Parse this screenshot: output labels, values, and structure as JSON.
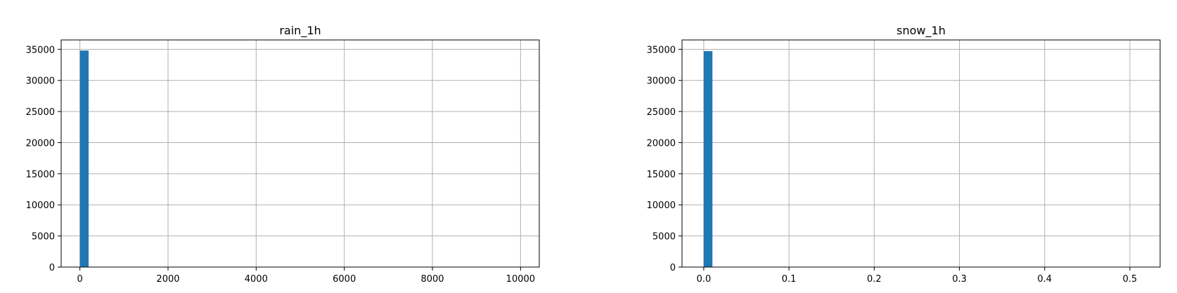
{
  "chart_data": [
    {
      "type": "bar",
      "title": "rain_1h",
      "xlabel": "",
      "ylabel": "",
      "xlim": [
        -425,
        10425
      ],
      "ylim": [
        0,
        36500
      ],
      "xticks": [
        0,
        2000,
        4000,
        6000,
        8000,
        10000
      ],
      "xtick_labels": [
        "0",
        "2000",
        "4000",
        "6000",
        "8000",
        "10000"
      ],
      "yticks": [
        0,
        5000,
        10000,
        15000,
        20000,
        25000,
        30000,
        35000
      ],
      "ytick_labels": [
        "0",
        "5000",
        "10000",
        "15000",
        "20000",
        "25000",
        "30000",
        "35000"
      ],
      "grid": true,
      "bins": [
        {
          "x0": 0,
          "x1": 198,
          "count": 34800
        }
      ],
      "colors": {
        "bar": "#1f77b4"
      }
    },
    {
      "type": "bar",
      "title": "snow_1h",
      "xlabel": "",
      "ylabel": "",
      "xlim": [
        -0.0255,
        0.5355
      ],
      "ylim": [
        0,
        36500
      ],
      "xticks": [
        0.0,
        0.1,
        0.2,
        0.3,
        0.4,
        0.5
      ],
      "xtick_labels": [
        "0.0",
        "0.1",
        "0.2",
        "0.3",
        "0.4",
        "0.5"
      ],
      "yticks": [
        0,
        5000,
        10000,
        15000,
        20000,
        25000,
        30000,
        35000
      ],
      "ytick_labels": [
        "0",
        "5000",
        "10000",
        "15000",
        "20000",
        "25000",
        "30000",
        "35000"
      ],
      "grid": true,
      "bins": [
        {
          "x0": 0.0,
          "x1": 0.0102,
          "count": 34700
        }
      ],
      "colors": {
        "bar": "#1f77b4"
      }
    }
  ]
}
